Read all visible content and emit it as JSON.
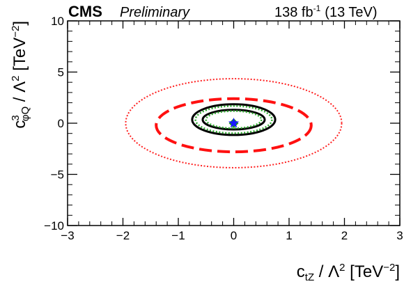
{
  "chart_data": {
    "type": "contour",
    "experiment": "CMS",
    "status": "Preliminary",
    "lumi": "138 fb",
    "lumi_exp": "-1",
    "energy": "(13 TeV)",
    "xlabel": {
      "base": "c",
      "sub": "tZ",
      "rest": " / Λ",
      "sup": "2",
      "unit": " [TeV",
      "unit_sup": "−2",
      "close": "]"
    },
    "ylabel": {
      "base": "c",
      "sup": "3",
      "sub": "φQ",
      "rest": " / Λ",
      "sup2": "2",
      "unit": " [TeV",
      "unit_sup": "−2",
      "close": "]"
    },
    "xlim": [
      -3,
      3
    ],
    "ylim": [
      -10,
      10
    ],
    "xticks": [
      "−3",
      "−2",
      "−1",
      "0",
      "1",
      "2",
      "3"
    ],
    "yticks": [
      "−10",
      "−5",
      "0",
      "5",
      "10"
    ],
    "best_fit": {
      "x": 0.0,
      "y": 0.0,
      "color": "#1a1aff",
      "marker": "star"
    },
    "sm_point": {
      "x": 0.0,
      "y": 0.0,
      "color": "#1a9a1a",
      "marker": "diamond"
    },
    "contours": [
      {
        "name": "red-dotted-outer",
        "color": "#ff2020",
        "style": "dotted",
        "cx": 0.0,
        "cy": 0.0,
        "rx": 1.95,
        "ry": 4.35,
        "width": 2
      },
      {
        "name": "red-dashed",
        "color": "#ff1010",
        "style": "dashed",
        "cx": 0.0,
        "cy": -0.2,
        "rx": 1.4,
        "ry": 2.6,
        "width": 4
      },
      {
        "name": "black-outer",
        "color": "#000000",
        "style": "solid",
        "cx": 0.0,
        "cy": 0.35,
        "rx": 0.75,
        "ry": 1.5,
        "width": 3
      },
      {
        "name": "green-dotted-outer",
        "color": "#2ea82e",
        "style": "dotted",
        "cx": 0.0,
        "cy": 0.35,
        "rx": 0.69,
        "ry": 1.33,
        "width": 2.5
      },
      {
        "name": "black-inner",
        "color": "#000000",
        "style": "solid",
        "cx": 0.0,
        "cy": 0.35,
        "rx": 0.56,
        "ry": 0.96,
        "width": 3
      },
      {
        "name": "green-dotted-inner",
        "color": "#2ea82e",
        "style": "dotted",
        "cx": 0.0,
        "cy": 0.35,
        "rx": 0.5,
        "ry": 0.84,
        "width": 2.5
      }
    ]
  }
}
